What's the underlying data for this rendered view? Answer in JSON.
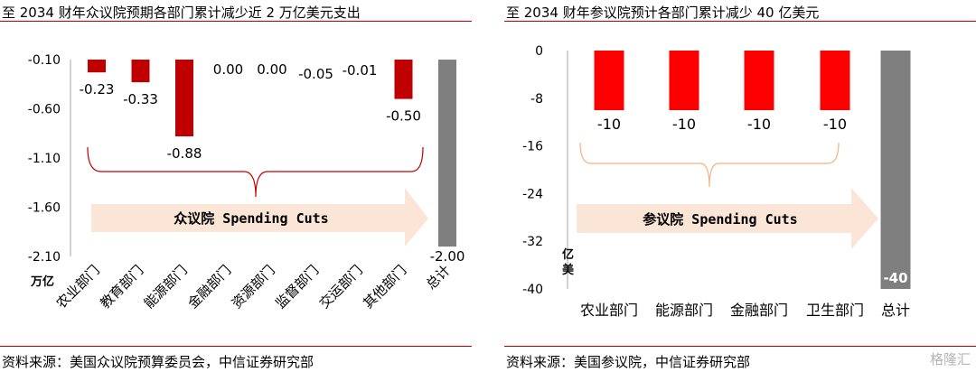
{
  "charts": [
    {
      "title": "至 2034 财年众议院预期各部门累计减少近 2 万亿美元支出",
      "source": "资料来源：美国众议院预算委员会，中信证券研究部",
      "unit_label": "万亿",
      "arrow_label": "众议院 Spending Cuts",
      "colors": {
        "bar": "#c00000",
        "total": "#7f7f7f",
        "arrow": "#fbe5d6",
        "brace": "#c00000"
      }
    },
    {
      "title": "至 2034 财年参议院预计各部门累计减少 40 亿美元",
      "source": "资料来源：美国参议院，中信证券研究部",
      "unit_label": "亿美",
      "arrow_label": "参议院 Spending Cuts",
      "colors": {
        "bar": "#ff0000",
        "total": "#7f7f7f",
        "arrow": "#fbe5d6",
        "brace": "#f4b183"
      }
    }
  ],
  "chart_data": [
    {
      "type": "bar",
      "title": "至 2034 财年众议院预期各部门累计减少近 2 万亿美元支出",
      "ylabel": "万亿",
      "categories": [
        "农业部门",
        "教育部门",
        "能源部门",
        "金融部门",
        "资源部门",
        "监督部门",
        "交运部门",
        "其他部门",
        "总计"
      ],
      "values": [
        -0.23,
        -0.33,
        -0.88,
        0.0,
        0.0,
        -0.05,
        -0.01,
        -0.5,
        -2.0
      ],
      "labels": [
        "-0.23",
        "-0.33",
        "-0.88",
        "0.00",
        "0.00",
        "-0.05",
        "-0.01",
        "-0.50",
        "-2.00"
      ],
      "yticks": [
        "-0.10",
        "-0.60",
        "-1.10",
        "-1.60",
        "-2.10"
      ],
      "ylim": [
        -2.1,
        -0.1
      ],
      "grid": false
    },
    {
      "type": "bar",
      "title": "至 2034 财年参议院预计各部门累计减少 40 亿美元",
      "ylabel": "亿美",
      "categories": [
        "农业部门",
        "能源部门",
        "金融部门",
        "卫生部门",
        "总计"
      ],
      "values": [
        -10,
        -10,
        -10,
        -10,
        -40
      ],
      "labels": [
        "-10",
        "-10",
        "-10",
        "-10",
        "-40"
      ],
      "yticks": [
        "0",
        "-8",
        "-16",
        "-24",
        "-32",
        "-40"
      ],
      "ylim": [
        -40,
        0
      ],
      "grid": false
    }
  ],
  "watermark": "格隆汇"
}
